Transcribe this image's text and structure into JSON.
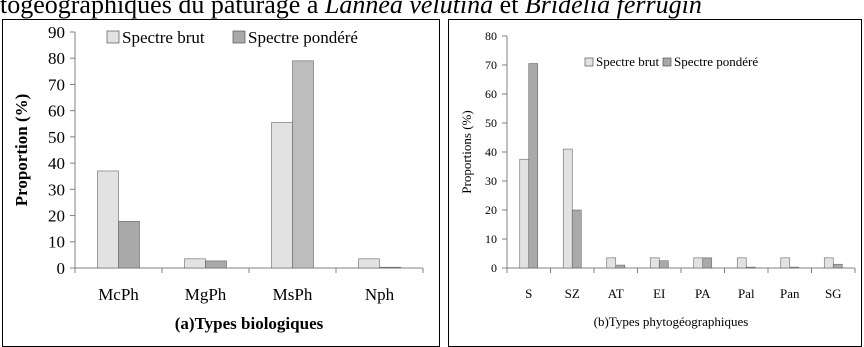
{
  "caption": {
    "prefix": "togéographiques du pâturage à ",
    "species_1": "Lannea velutina",
    "joiner": " et ",
    "species_2": "Bridelia ferrugin"
  },
  "colors": {
    "brut": "#e2e2e2",
    "pondere": "#a9a9a9",
    "axis": "#808080",
    "border": "#000000"
  },
  "chart_data": [
    {
      "type": "bar",
      "panel": "a",
      "categories": [
        "McPh",
        "MgPh",
        "MsPh",
        "Nph"
      ],
      "series": [
        {
          "name": "Spectre brut",
          "values": [
            37,
            3.5,
            55.5,
            3.5
          ]
        },
        {
          "name": "Spectre pondéré",
          "values": [
            17.8,
            2.7,
            79,
            0.3
          ]
        }
      ],
      "bar_colors": [
        [
          "#e2e2e2",
          "#e2e2e2",
          "#e2e2e2",
          "#e2e2e2"
        ],
        [
          "#a9a9a9",
          "#a9a9a9",
          "#bdbdbd",
          "#a9a9a9"
        ]
      ],
      "title": "",
      "xlabel": "(a)Types biologiques",
      "ylabel": "Proportion (%)",
      "ylim": [
        0,
        90
      ],
      "yticks": [
        0,
        10,
        20,
        30,
        40,
        50,
        60,
        70,
        80,
        90
      ],
      "grid": false,
      "legend_position": "top"
    },
    {
      "type": "bar",
      "panel": "b",
      "categories": [
        "S",
        "SZ",
        "AT",
        "EI",
        "PA",
        "Pal",
        "Pan",
        "SG"
      ],
      "series": [
        {
          "name": "Spectre brut",
          "values": [
            37.5,
            41,
            3.5,
            3.5,
            3.5,
            3.5,
            3.5,
            3.5
          ]
        },
        {
          "name": "Spectre pondéré",
          "values": [
            70.5,
            20,
            1,
            2.5,
            3.5,
            0.3,
            0.3,
            1.3
          ]
        }
      ],
      "bar_colors": [
        [
          "#e2e2e2",
          "#e2e2e2",
          "#e2e2e2",
          "#e2e2e2",
          "#e2e2e2",
          "#e2e2e2",
          "#e2e2e2",
          "#e2e2e2"
        ],
        [
          "#a9a9a9",
          "#a9a9a9",
          "#a9a9a9",
          "#a9a9a9",
          "#a9a9a9",
          "#a9a9a9",
          "#a9a9a9",
          "#a9a9a9"
        ]
      ],
      "title": "",
      "xlabel": "(b)Types phytogéographiques",
      "ylabel": "Proportions (%)",
      "ylim": [
        0,
        80
      ],
      "yticks": [
        0,
        10,
        20,
        30,
        40,
        50,
        60,
        70,
        80
      ],
      "grid": false,
      "legend_position": "top-right"
    }
  ]
}
